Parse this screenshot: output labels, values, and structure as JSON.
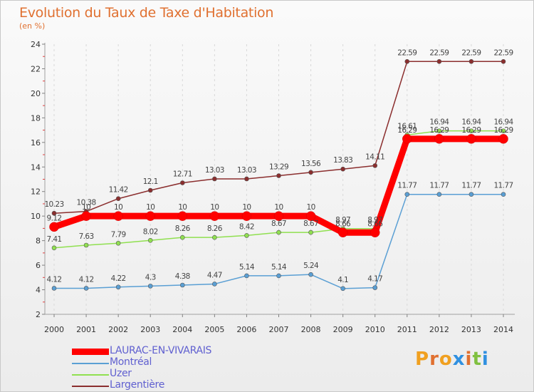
{
  "title": "Evolution du Taux de Taxe d'Habitation",
  "subtitle": "(en %)",
  "logo": {
    "text": "Proxiti",
    "letter_colors": [
      "#f0a020",
      "#e07030",
      "#f0a020",
      "#3090e0",
      "#e07030",
      "#80c040",
      "#3090e0"
    ]
  },
  "chart_data": {
    "type": "line",
    "title": "Evolution du Taux de Taxe d'Habitation",
    "ylabel": "(en %)",
    "xlabel": "",
    "ylim": [
      2,
      24
    ],
    "yticks": [
      2,
      4,
      6,
      8,
      10,
      12,
      14,
      16,
      18,
      20,
      22,
      24
    ],
    "grid": "vertical dashed",
    "legend": "bottom-left",
    "categories": [
      "2000",
      "2001",
      "2002",
      "2003",
      "2004",
      "2005",
      "2006",
      "2007",
      "2008",
      "2009",
      "2010",
      "2011",
      "2012",
      "2013",
      "2014"
    ],
    "series": [
      {
        "name": "LAURAC-EN-VIVARAIS",
        "color": "#ff0000",
        "values": [
          9.12,
          10,
          10,
          10,
          10,
          10,
          10,
          10,
          10,
          8.66,
          8.66,
          16.29,
          16.29,
          16.29,
          16.29
        ],
        "labels": [
          "9.12",
          "10",
          "10",
          "10",
          "10",
          "10",
          "10",
          "10",
          "10",
          "8.66",
          "8.66",
          "16.29",
          "16.29",
          "16.29",
          "16.29"
        ]
      },
      {
        "name": "Montréal",
        "color": "#5a9fd4",
        "values": [
          4.12,
          4.12,
          4.22,
          4.3,
          4.38,
          4.47,
          5.14,
          5.14,
          5.24,
          4.1,
          4.17,
          11.77,
          11.77,
          11.77,
          11.77
        ],
        "labels": [
          "4.12",
          "4.12",
          "4.22",
          "4.3",
          "4.38",
          "4.47",
          "5.14",
          "5.14",
          "5.24",
          "4.1",
          "4.17",
          "11.77",
          "11.77",
          "11.77",
          "11.77"
        ]
      },
      {
        "name": "Uzer",
        "color": "#90e050",
        "values": [
          7.41,
          7.63,
          7.79,
          8.02,
          8.26,
          8.26,
          8.42,
          8.67,
          8.67,
          8.97,
          8.97,
          16.61,
          16.94,
          16.94,
          16.94
        ],
        "labels": [
          "7.41",
          "7.63",
          "7.79",
          "8.02",
          "8.26",
          "8.26",
          "8.42",
          "8.67",
          "8.67",
          "8.97",
          "8.97",
          "16.61",
          "16.94",
          "16.94",
          "16.94"
        ]
      },
      {
        "name": "Largentière",
        "color": "#8b2e2e",
        "values": [
          10.23,
          10.38,
          11.42,
          12.1,
          12.71,
          13.03,
          13.03,
          13.29,
          13.56,
          13.83,
          14.11,
          22.59,
          22.59,
          22.59,
          22.59
        ],
        "labels": [
          "10.23",
          "10.38",
          "11.42",
          "12.1",
          "12.71",
          "13.03",
          "13.03",
          "13.29",
          "13.56",
          "13.83",
          "14.11",
          "22.59",
          "22.59",
          "22.59",
          "22.59"
        ]
      }
    ]
  }
}
